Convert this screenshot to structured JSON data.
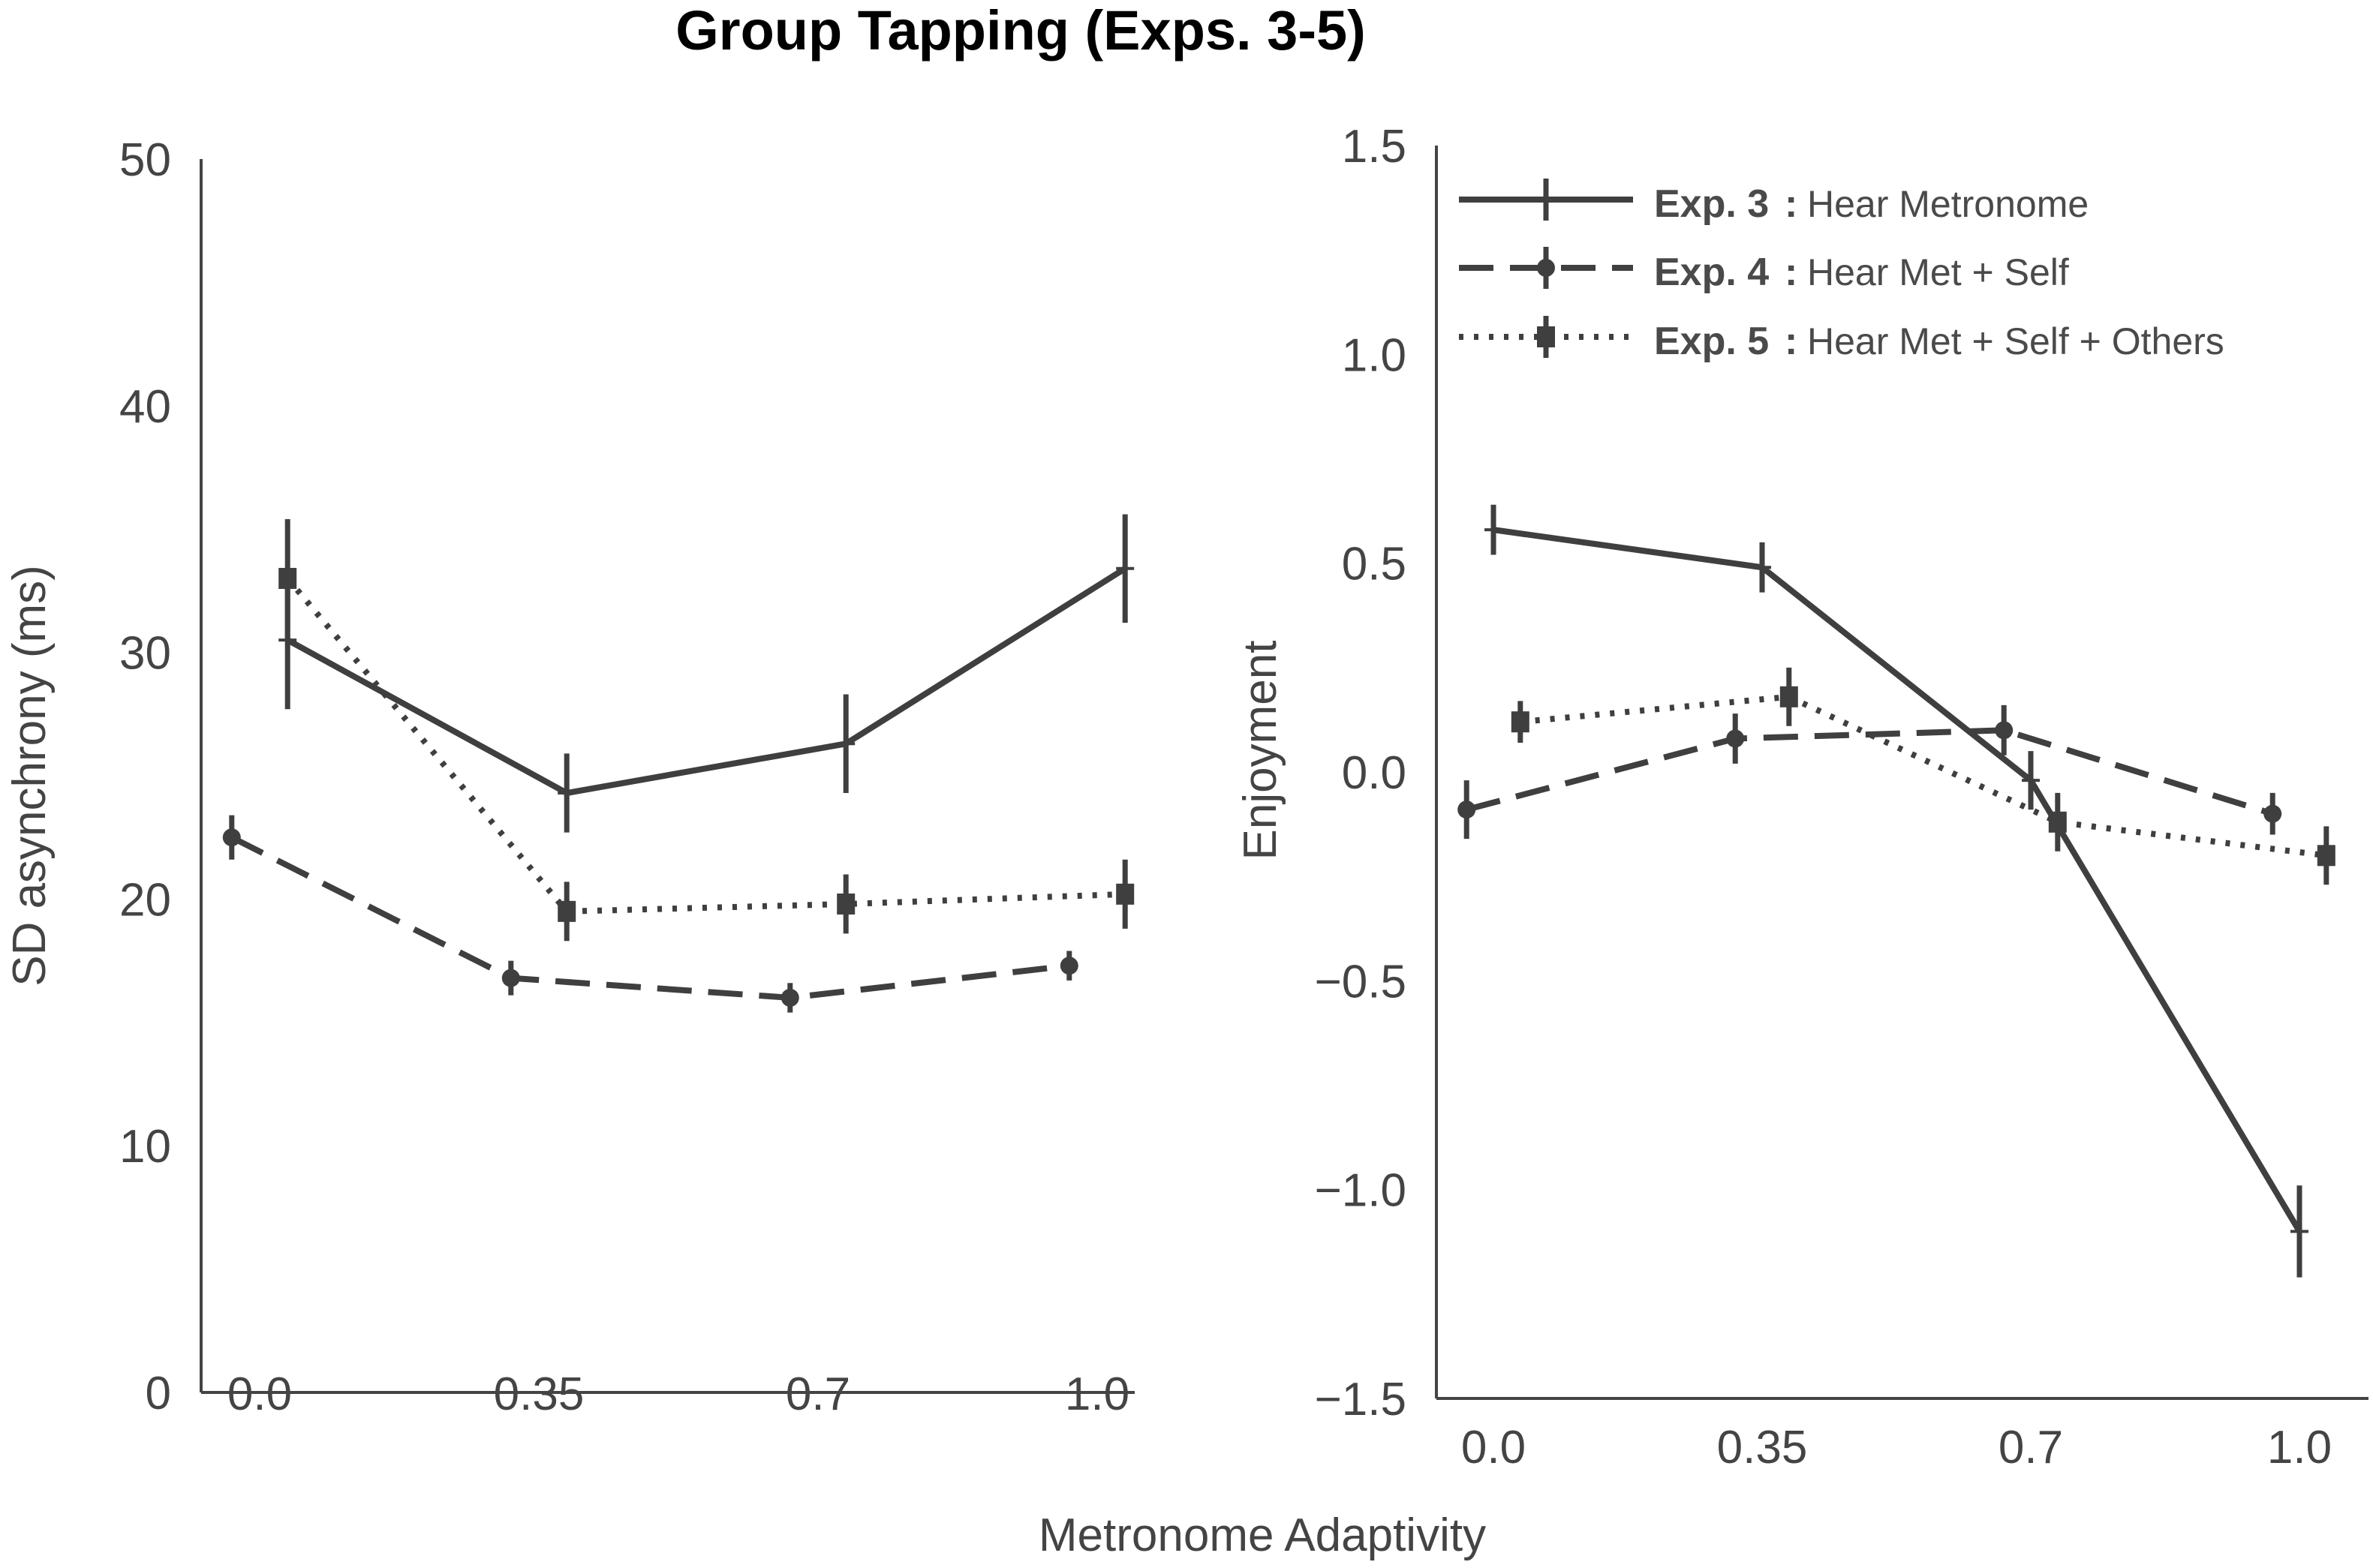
{
  "title": "Group Tapping (Exps. 3-5)",
  "shared_xlabel": "Metronome Adaptivity",
  "colors": {
    "line": "#3f3f3f",
    "axis": "#444444",
    "text": "#444444",
    "title": "#000000"
  },
  "legend": [
    {
      "exp": "Exp. 3",
      "desc": "Hear Metronome",
      "style": "solid",
      "marker": "none"
    },
    {
      "exp": "Exp. 4",
      "desc": "Hear Met + Self",
      "style": "dashed",
      "marker": "circle"
    },
    {
      "exp": "Exp. 5",
      "desc": "Hear Met + Self + Others",
      "style": "dotted",
      "marker": "square"
    }
  ],
  "chart_data": [
    {
      "type": "line",
      "title": "",
      "xlabel": "",
      "ylabel": "SD asynchrony (ms)",
      "categories": [
        "0.0",
        "0.35",
        "0.7",
        "1.0"
      ],
      "ylim": [
        0,
        50
      ],
      "yticks": [
        "0",
        "10",
        "20",
        "30",
        "40",
        "50"
      ],
      "grid": false,
      "series": [
        {
          "name": "Exp. 3 : Hear Metronome",
          "style": "solid",
          "marker": "none",
          "offset": 0.1,
          "values": [
            30.5,
            24.3,
            26.3,
            33.4
          ],
          "err": [
            2.8,
            1.6,
            2.0,
            2.2
          ]
        },
        {
          "name": "Exp. 4 : Hear Met + Self",
          "style": "dashed",
          "marker": "circle",
          "offset": -0.1,
          "values": [
            22.5,
            16.8,
            16.0,
            17.3
          ],
          "err": [
            0.9,
            0.7,
            0.6,
            0.6
          ]
        },
        {
          "name": "Exp. 5 : Hear Met + Self + Others",
          "style": "dotted",
          "marker": "square",
          "offset": 0.1,
          "values": [
            33.0,
            19.5,
            19.8,
            20.2
          ],
          "err": [
            2.4,
            1.2,
            1.2,
            1.4
          ]
        }
      ]
    },
    {
      "type": "line",
      "title": "",
      "xlabel": "",
      "ylabel": "Enjoyment",
      "categories": [
        "0.0",
        "0.35",
        "0.7",
        "1.0"
      ],
      "ylim": [
        -1.5,
        1.5
      ],
      "yticks": [
        "−1.5",
        "−1.0",
        "−0.5",
        "0.0",
        "0.5",
        "1.0",
        "1.5"
      ],
      "grid": false,
      "legend_position": "top-left",
      "series": [
        {
          "name": "Exp. 3 : Hear Metronome",
          "style": "solid",
          "marker": "none",
          "offset": 0.0,
          "values": [
            0.58,
            0.49,
            -0.02,
            -1.1
          ],
          "err": [
            0.06,
            0.06,
            0.07,
            0.11
          ]
        },
        {
          "name": "Exp. 4 : Hear Met + Self",
          "style": "dashed",
          "marker": "circle",
          "offset": -0.1,
          "values": [
            -0.09,
            0.08,
            0.1,
            -0.1
          ],
          "err": [
            0.07,
            0.06,
            0.06,
            0.05
          ]
        },
        {
          "name": "Exp. 5 : Hear Met + Self + Others",
          "style": "dotted",
          "marker": "square",
          "offset": 0.1,
          "values": [
            0.12,
            0.18,
            -0.12,
            -0.2
          ],
          "err": [
            0.05,
            0.07,
            0.07,
            0.07
          ]
        }
      ]
    }
  ]
}
